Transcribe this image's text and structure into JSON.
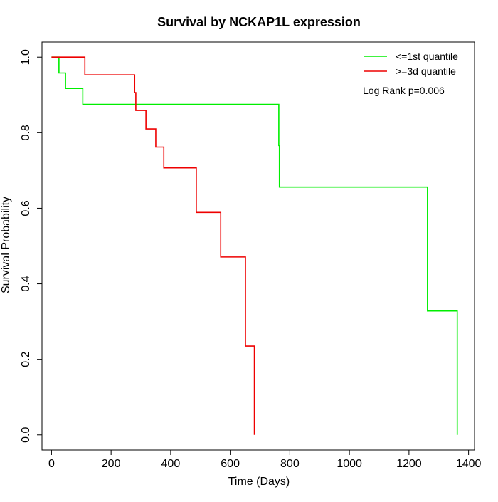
{
  "chart_data": {
    "type": "line",
    "subtype": "kaplan-meier step",
    "title": "Survival by NCKAP1L expression",
    "xlabel": "Time (Days)",
    "ylabel": "Survival Probability",
    "xlim": [
      -32,
      1420
    ],
    "ylim": [
      -0.04,
      1.04
    ],
    "x_ticks": [
      0,
      200,
      400,
      600,
      800,
      1000,
      1200,
      1400
    ],
    "y_ticks": [
      0.0,
      0.2,
      0.4,
      0.6,
      0.8,
      1.0
    ],
    "y_tick_labels": [
      "0.0",
      "0.2",
      "0.4",
      "0.6",
      "0.8",
      "1.0"
    ],
    "legend_position": "top-right",
    "annotation": "Log Rank p=0.006",
    "series": [
      {
        "name": "<=1st quantile",
        "color": "#00ee00",
        "steps": [
          [
            0,
            1.0
          ],
          [
            25,
            0.958
          ],
          [
            47,
            0.917
          ],
          [
            105,
            0.875
          ],
          [
            763,
            0.766
          ],
          [
            765,
            0.656
          ],
          [
            1262,
            0.328
          ],
          [
            1362,
            0.0
          ]
        ],
        "end_x": 1362,
        "censor_ticks": []
      },
      {
        "name": ">=3d quantile",
        "color": "#ee0000",
        "steps": [
          [
            0,
            1.0
          ],
          [
            112,
            0.953
          ],
          [
            279,
            0.906
          ],
          [
            283,
            0.859
          ],
          [
            317,
            0.81
          ],
          [
            350,
            0.762
          ],
          [
            377,
            0.707
          ],
          [
            486,
            0.589
          ],
          [
            568,
            0.471
          ],
          [
            651,
            0.235
          ],
          [
            681,
            0.0
          ]
        ],
        "end_x": 681,
        "censor_ticks": []
      }
    ]
  }
}
